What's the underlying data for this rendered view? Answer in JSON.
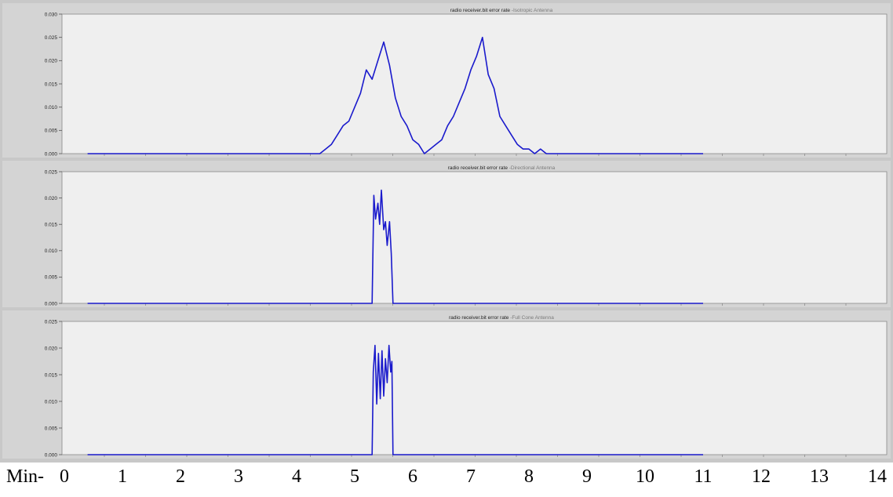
{
  "chart_data": [
    {
      "type": "line",
      "title_main": "radio receiver.bit error rate",
      "title_suffix": "-Isotropic Antenna",
      "y_ticks": [
        "0.000",
        "0.005",
        "0.010",
        "0.015",
        "0.020",
        "0.025",
        "0.030"
      ],
      "ylim": [
        0,
        0.03
      ],
      "xlim": [
        0,
        14
      ],
      "series": [
        {
          "color": "#1a1acc",
          "x": [
            0.4,
            4.4,
            4.5,
            4.6,
            4.7,
            4.8,
            4.9,
            5.0,
            5.1,
            5.2,
            5.3,
            5.4,
            5.5,
            5.6,
            5.7,
            5.8,
            5.9,
            6.0,
            6.1,
            6.2,
            6.3,
            6.4,
            6.5,
            6.6,
            6.7,
            6.8,
            6.9,
            7.0,
            7.1,
            7.2,
            7.3,
            7.4,
            7.5,
            7.6,
            7.7,
            7.8,
            7.9,
            8.0,
            8.1,
            8.2,
            8.3,
            11.0
          ],
          "y": [
            0.0,
            0.0,
            0.001,
            0.002,
            0.004,
            0.006,
            0.007,
            0.01,
            0.013,
            0.018,
            0.016,
            0.02,
            0.024,
            0.019,
            0.012,
            0.008,
            0.006,
            0.003,
            0.002,
            0.0,
            0.001,
            0.002,
            0.003,
            0.006,
            0.008,
            0.011,
            0.014,
            0.018,
            0.021,
            0.025,
            0.017,
            0.014,
            0.008,
            0.006,
            0.004,
            0.002,
            0.001,
            0.001,
            0.0,
            0.001,
            0.0,
            0.0
          ]
        }
      ]
    },
    {
      "type": "line",
      "title_main": "radio receiver.bit error rate",
      "title_suffix": "-Directional Antenna",
      "y_ticks": [
        "0.000",
        "0.005",
        "0.010",
        "0.015",
        "0.020",
        "0.025"
      ],
      "ylim": [
        0,
        0.025
      ],
      "xlim": [
        0,
        14
      ],
      "series": [
        {
          "color": "#1a1acc",
          "x": [
            0.4,
            5.3,
            5.33,
            5.36,
            5.4,
            5.43,
            5.46,
            5.5,
            5.53,
            5.56,
            5.6,
            5.63,
            5.66,
            11.0
          ],
          "y": [
            0.0,
            0.0,
            0.0205,
            0.016,
            0.019,
            0.015,
            0.0215,
            0.014,
            0.0155,
            0.011,
            0.0155,
            0.0095,
            0.0,
            0.0
          ]
        }
      ]
    },
    {
      "type": "line",
      "title_main": "radio receiver.bit error rate",
      "title_suffix": "-Full Cone  Antenna",
      "y_ticks": [
        "0.000",
        "0.005",
        "0.010",
        "0.015",
        "0.020",
        "0.025"
      ],
      "ylim": [
        0,
        0.025
      ],
      "xlim": [
        0,
        14
      ],
      "series": [
        {
          "color": "#1a1acc",
          "x": [
            0.4,
            5.3,
            5.32,
            5.35,
            5.38,
            5.41,
            5.44,
            5.47,
            5.5,
            5.53,
            5.56,
            5.59,
            5.62,
            5.64,
            5.66,
            11.0
          ],
          "y": [
            0.0,
            0.0,
            0.0155,
            0.0205,
            0.0095,
            0.019,
            0.0105,
            0.0195,
            0.011,
            0.018,
            0.0135,
            0.0205,
            0.0155,
            0.0175,
            0.0,
            0.0
          ]
        }
      ]
    }
  ],
  "x_axis": {
    "prefix": "Min-",
    "labels": [
      "0",
      "1",
      "2",
      "3",
      "4",
      "5",
      "6",
      "7",
      "8",
      "9",
      "10",
      "11",
      "12",
      "13",
      "14"
    ]
  }
}
